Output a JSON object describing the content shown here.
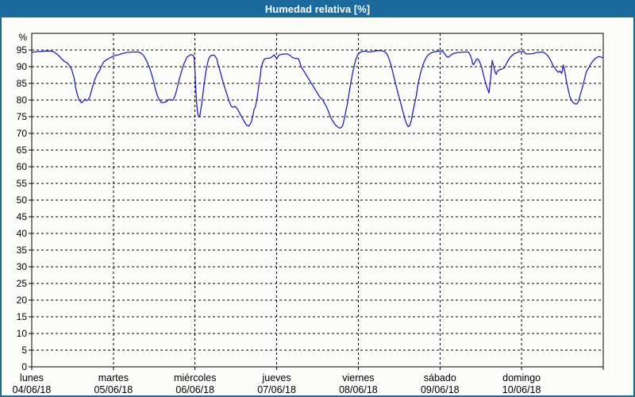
{
  "window": {
    "title": "Humedad relativa [%]",
    "colors": {
      "titlebar": "#1c699e",
      "border": "#1c699e",
      "background": "#fcfdfa",
      "plot_frame": "#000000",
      "grid": "#000000",
      "line": "#2323b2",
      "text": "#000000"
    }
  },
  "chart_data": {
    "type": "line",
    "title": "Humedad relativa [%]",
    "ylabel": "%",
    "ylim": [
      0,
      100
    ],
    "yticks": [
      0,
      5,
      10,
      15,
      20,
      25,
      30,
      35,
      40,
      45,
      50,
      55,
      60,
      65,
      70,
      75,
      80,
      85,
      90,
      95
    ],
    "grid": true,
    "legend": "none",
    "x_axis": {
      "span_days": 7,
      "days": [
        {
          "weekday": "lunes",
          "date": "04/06/18"
        },
        {
          "weekday": "martes",
          "date": "05/06/18"
        },
        {
          "weekday": "miércoles",
          "date": "06/06/18"
        },
        {
          "weekday": "jueves",
          "date": "07/06/18"
        },
        {
          "weekday": "viernes",
          "date": "08/06/18"
        },
        {
          "weekday": "sábado",
          "date": "09/06/18"
        },
        {
          "weekday": "domingo",
          "date": "10/06/18"
        }
      ]
    },
    "series": [
      {
        "name": "Humedad relativa",
        "color": "#2323b2",
        "points": [
          [
            0.0,
            94.3
          ],
          [
            0.05,
            94.5
          ],
          [
            0.12,
            94.6
          ],
          [
            0.17,
            94.7
          ],
          [
            0.23,
            94.7
          ],
          [
            0.27,
            94.5
          ],
          [
            0.3,
            93.9
          ],
          [
            0.34,
            93.1
          ],
          [
            0.37,
            92.2
          ],
          [
            0.4,
            91.6
          ],
          [
            0.43,
            91.2
          ],
          [
            0.45,
            90.7
          ],
          [
            0.47,
            90.0
          ],
          [
            0.49,
            89.1
          ],
          [
            0.52,
            86.5
          ],
          [
            0.54,
            83.5
          ],
          [
            0.56,
            81.5
          ],
          [
            0.58,
            80.0
          ],
          [
            0.61,
            79.2
          ],
          [
            0.63,
            79.6
          ],
          [
            0.65,
            80.3
          ],
          [
            0.67,
            79.8
          ],
          [
            0.69,
            80.1
          ],
          [
            0.71,
            80.9
          ],
          [
            0.74,
            83.5
          ],
          [
            0.77,
            86.0
          ],
          [
            0.8,
            87.8
          ],
          [
            0.83,
            88.8
          ],
          [
            0.86,
            90.5
          ],
          [
            0.88,
            91.4
          ],
          [
            0.91,
            92.0
          ],
          [
            0.94,
            92.4
          ],
          [
            0.97,
            92.8
          ],
          [
            1.0,
            93.2
          ],
          [
            1.04,
            93.5
          ],
          [
            1.07,
            93.6
          ],
          [
            1.09,
            93.8
          ],
          [
            1.12,
            94.0
          ],
          [
            1.15,
            94.2
          ],
          [
            1.19,
            94.3
          ],
          [
            1.24,
            94.4
          ],
          [
            1.31,
            94.4
          ],
          [
            1.34,
            94.0
          ],
          [
            1.36,
            93.6
          ],
          [
            1.38,
            93.0
          ],
          [
            1.41,
            91.6
          ],
          [
            1.44,
            89.8
          ],
          [
            1.46,
            88.4
          ],
          [
            1.49,
            85.8
          ],
          [
            1.52,
            82.8
          ],
          [
            1.54,
            81.2
          ],
          [
            1.56,
            80.2
          ],
          [
            1.58,
            79.5
          ],
          [
            1.59,
            79.2
          ],
          [
            1.62,
            79.3
          ],
          [
            1.65,
            79.5
          ],
          [
            1.67,
            80.0
          ],
          [
            1.69,
            80.2
          ],
          [
            1.71,
            79.9
          ],
          [
            1.73,
            80.0
          ],
          [
            1.75,
            81.0
          ],
          [
            1.77,
            82.5
          ],
          [
            1.79,
            84.5
          ],
          [
            1.81,
            86.5
          ],
          [
            1.83,
            88.2
          ],
          [
            1.85,
            89.8
          ],
          [
            1.87,
            91.2
          ],
          [
            1.89,
            92.2
          ],
          [
            1.9,
            92.8
          ],
          [
            1.92,
            93.2
          ],
          [
            1.94,
            93.5
          ],
          [
            1.96,
            93.6
          ],
          [
            1.98,
            93.3
          ],
          [
            1.99,
            92.5
          ],
          [
            2.0,
            88.5
          ],
          [
            2.01,
            83.0
          ],
          [
            2.02,
            79.0
          ],
          [
            2.03,
            76.5
          ],
          [
            2.04,
            75.2
          ],
          [
            2.05,
            74.9
          ],
          [
            2.06,
            75.5
          ],
          [
            2.08,
            78.5
          ],
          [
            2.1,
            82.5
          ],
          [
            2.12,
            86.5
          ],
          [
            2.14,
            89.5
          ],
          [
            2.16,
            91.8
          ],
          [
            2.18,
            93.0
          ],
          [
            2.2,
            93.4
          ],
          [
            2.23,
            93.5
          ],
          [
            2.25,
            93.0
          ],
          [
            2.27,
            92.2
          ],
          [
            2.28,
            90.8
          ],
          [
            2.3,
            89.3
          ],
          [
            2.33,
            86.5
          ],
          [
            2.36,
            84.0
          ],
          [
            2.39,
            81.8
          ],
          [
            2.42,
            79.5
          ],
          [
            2.44,
            78.3
          ],
          [
            2.46,
            77.8
          ],
          [
            2.49,
            78.1
          ],
          [
            2.52,
            77.3
          ],
          [
            2.55,
            75.9
          ],
          [
            2.58,
            74.5
          ],
          [
            2.61,
            73.3
          ],
          [
            2.63,
            72.5
          ],
          [
            2.66,
            72.2
          ],
          [
            2.69,
            73.5
          ],
          [
            2.71,
            75.3
          ],
          [
            2.72,
            77.0
          ],
          [
            2.74,
            78.0
          ],
          [
            2.76,
            80.5
          ],
          [
            2.78,
            84.1
          ],
          [
            2.8,
            87.3
          ],
          [
            2.81,
            89.7
          ],
          [
            2.83,
            91.3
          ],
          [
            2.85,
            92.3
          ],
          [
            2.88,
            92.5
          ],
          [
            2.92,
            92.6
          ],
          [
            2.95,
            93.1
          ],
          [
            2.97,
            93.6
          ],
          [
            3.0,
            92.4
          ],
          [
            3.03,
            93.5
          ],
          [
            3.06,
            93.7
          ],
          [
            3.09,
            93.8
          ],
          [
            3.13,
            93.8
          ],
          [
            3.16,
            93.5
          ],
          [
            3.19,
            92.8
          ],
          [
            3.22,
            92.5
          ],
          [
            3.25,
            92.5
          ],
          [
            3.27,
            92.3
          ],
          [
            3.3,
            90.0
          ],
          [
            3.35,
            88.0
          ],
          [
            3.4,
            86.0
          ],
          [
            3.45,
            84.0
          ],
          [
            3.5,
            82.0
          ],
          [
            3.53,
            80.8
          ],
          [
            3.56,
            80.2
          ],
          [
            3.58,
            79.3
          ],
          [
            3.61,
            78.0
          ],
          [
            3.64,
            76.2
          ],
          [
            3.66,
            74.8
          ],
          [
            3.69,
            73.6
          ],
          [
            3.72,
            72.5
          ],
          [
            3.75,
            71.9
          ],
          [
            3.77,
            71.6
          ],
          [
            3.79,
            71.7
          ],
          [
            3.81,
            72.5
          ],
          [
            3.83,
            74.5
          ],
          [
            3.85,
            77.0
          ],
          [
            3.87,
            79.5
          ],
          [
            3.89,
            82.5
          ],
          [
            3.91,
            85.5
          ],
          [
            3.93,
            88.0
          ],
          [
            3.95,
            90.4
          ],
          [
            3.97,
            92.2
          ],
          [
            3.99,
            93.4
          ],
          [
            4.01,
            94.1
          ],
          [
            4.04,
            94.5
          ],
          [
            4.08,
            94.7
          ],
          [
            4.11,
            94.5
          ],
          [
            4.14,
            94.4
          ],
          [
            4.18,
            94.6
          ],
          [
            4.23,
            94.8
          ],
          [
            4.28,
            94.8
          ],
          [
            4.32,
            94.6
          ],
          [
            4.35,
            93.8
          ],
          [
            4.37,
            92.8
          ],
          [
            4.4,
            90.5
          ],
          [
            4.43,
            87.5
          ],
          [
            4.46,
            84.6
          ],
          [
            4.49,
            81.7
          ],
          [
            4.52,
            79.0
          ],
          [
            4.55,
            76.2
          ],
          [
            4.57,
            74.3
          ],
          [
            4.59,
            72.9
          ],
          [
            4.61,
            72.0
          ],
          [
            4.63,
            72.3
          ],
          [
            4.65,
            74.0
          ],
          [
            4.67,
            76.6
          ],
          [
            4.69,
            79.0
          ],
          [
            4.71,
            81.3
          ],
          [
            4.73,
            84.6
          ],
          [
            4.76,
            87.9
          ],
          [
            4.78,
            89.7
          ],
          [
            4.81,
            91.7
          ],
          [
            4.84,
            93.1
          ],
          [
            4.88,
            94.0
          ],
          [
            4.92,
            94.4
          ],
          [
            4.96,
            94.6
          ],
          [
            5.0,
            94.7
          ],
          [
            5.04,
            94.5
          ],
          [
            5.06,
            93.8
          ],
          [
            5.08,
            93.1
          ],
          [
            5.1,
            92.8
          ],
          [
            5.12,
            93.2
          ],
          [
            5.14,
            93.6
          ],
          [
            5.17,
            94.0
          ],
          [
            5.21,
            94.2
          ],
          [
            5.25,
            94.3
          ],
          [
            5.3,
            94.4
          ],
          [
            5.35,
            94.4
          ],
          [
            5.37,
            93.5
          ],
          [
            5.39,
            92.2
          ],
          [
            5.4,
            90.9
          ],
          [
            5.41,
            90.6
          ],
          [
            5.43,
            91.4
          ],
          [
            5.45,
            92.3
          ],
          [
            5.47,
            92.2
          ],
          [
            5.49,
            91.2
          ],
          [
            5.51,
            90.0
          ],
          [
            5.53,
            87.8
          ],
          [
            5.55,
            85.9
          ],
          [
            5.57,
            84.2
          ],
          [
            5.59,
            82.8
          ],
          [
            5.6,
            82.1
          ],
          [
            5.62,
            86.5
          ],
          [
            5.64,
            91.9
          ],
          [
            5.66,
            89.8
          ],
          [
            5.68,
            88.0
          ],
          [
            5.69,
            87.7
          ],
          [
            5.7,
            88.6
          ],
          [
            5.73,
            89.1
          ],
          [
            5.76,
            89.3
          ],
          [
            5.79,
            89.7
          ],
          [
            5.82,
            91.2
          ],
          [
            5.85,
            92.5
          ],
          [
            5.88,
            93.3
          ],
          [
            5.91,
            93.9
          ],
          [
            5.95,
            94.3
          ],
          [
            5.98,
            94.5
          ],
          [
            6.01,
            94.6
          ],
          [
            6.03,
            94.4
          ],
          [
            6.05,
            93.9
          ],
          [
            6.08,
            93.8
          ],
          [
            6.11,
            93.9
          ],
          [
            6.14,
            93.9
          ],
          [
            6.17,
            94.2
          ],
          [
            6.21,
            94.3
          ],
          [
            6.26,
            94.4
          ],
          [
            6.29,
            94.0
          ],
          [
            6.32,
            93.3
          ],
          [
            6.35,
            92.2
          ],
          [
            6.37,
            91.2
          ],
          [
            6.39,
            90.1
          ],
          [
            6.41,
            89.5
          ],
          [
            6.43,
            88.8
          ],
          [
            6.45,
            88.3
          ],
          [
            6.47,
            88.7
          ],
          [
            6.49,
            88.0
          ],
          [
            6.5,
            88.9
          ],
          [
            6.51,
            90.5
          ],
          [
            6.53,
            88.5
          ],
          [
            6.55,
            85.5
          ],
          [
            6.57,
            83.2
          ],
          [
            6.59,
            81.2
          ],
          [
            6.61,
            79.9
          ],
          [
            6.63,
            79.3
          ],
          [
            6.66,
            78.8
          ],
          [
            6.68,
            78.9
          ],
          [
            6.7,
            79.8
          ],
          [
            6.71,
            80.9
          ],
          [
            6.73,
            82.5
          ],
          [
            6.75,
            84.3
          ],
          [
            6.77,
            86.2
          ],
          [
            6.79,
            88.3
          ],
          [
            6.81,
            89.2
          ],
          [
            6.84,
            90.5
          ],
          [
            6.87,
            91.6
          ],
          [
            6.9,
            92.4
          ],
          [
            6.93,
            92.9
          ],
          [
            6.96,
            93.0
          ],
          [
            6.98,
            92.8
          ],
          [
            7.0,
            92.7
          ]
        ]
      }
    ]
  }
}
